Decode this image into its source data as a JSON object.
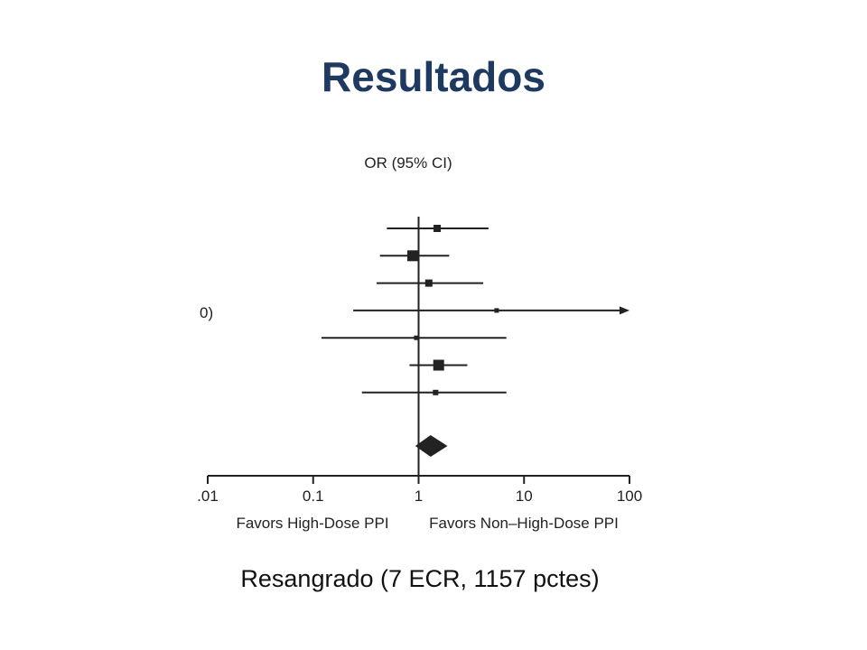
{
  "slide": {
    "title": "Resultados",
    "caption": "Resangrado (7 ECR, 1157 pctes)"
  },
  "chart_data": {
    "type": "forest",
    "column_header": "OR (95% CI)",
    "partial_row_label": "0)",
    "xscale": "log",
    "xlim": [
      0.01,
      100
    ],
    "ticks": [
      ".01",
      "0.1",
      "1",
      "10",
      "100"
    ],
    "tick_values": [
      0.01,
      0.1,
      1,
      10,
      100
    ],
    "xlabel_left": "Favors High-Dose PPI",
    "xlabel_right": "Favors Non–High-Dose PPI",
    "reference_line": 1,
    "studies": [
      {
        "or": 1.5,
        "lower": 0.5,
        "upper": 4.6,
        "weight": "medium",
        "arrow": false
      },
      {
        "or": 0.88,
        "lower": 0.43,
        "upper": 1.95,
        "weight": "large",
        "arrow": false
      },
      {
        "or": 1.25,
        "lower": 0.4,
        "upper": 4.1,
        "weight": "medium",
        "arrow": false
      },
      {
        "or": 5.5,
        "lower": 0.24,
        "upper": 100,
        "weight": "tiny",
        "arrow": true
      },
      {
        "or": 0.95,
        "lower": 0.12,
        "upper": 6.8,
        "weight": "tiny",
        "arrow": false
      },
      {
        "or": 1.55,
        "lower": 0.82,
        "upper": 2.9,
        "weight": "large",
        "arrow": false
      },
      {
        "or": 1.45,
        "lower": 0.29,
        "upper": 6.8,
        "weight": "small",
        "arrow": false
      }
    ],
    "pooled": {
      "or": 1.3,
      "lower": 0.93,
      "upper": 1.88
    },
    "colors": {
      "ink": "#222222",
      "title": "#1f3a60"
    }
  }
}
